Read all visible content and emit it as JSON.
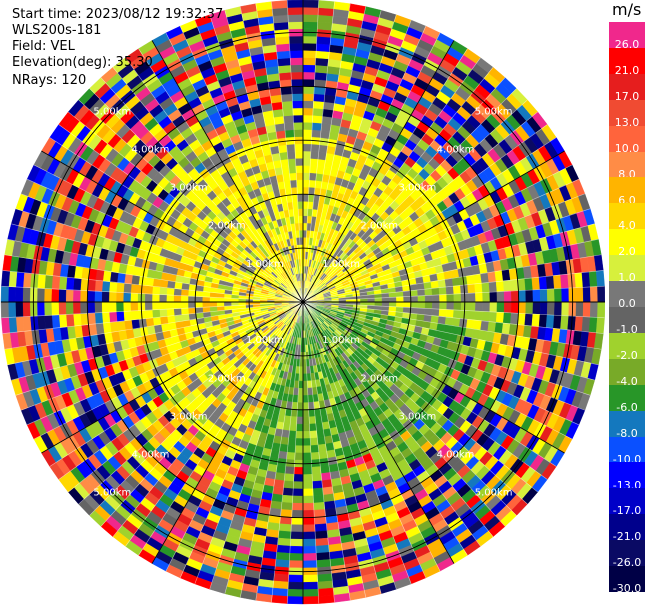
{
  "header": {
    "start_time": "Start time: 2023/08/12 19:32:37",
    "instrument": "WLS200s-181",
    "field": "Field: VEL",
    "elevation": "Elevation(deg): 35.30",
    "nrays": "NRays: 120"
  },
  "colorbar": {
    "units": "m/s",
    "levels": [
      {
        "label": "26.0",
        "color": "#f0288c"
      },
      {
        "label": "21.0",
        "color": "#ff0000"
      },
      {
        "label": "17.0",
        "color": "#e61e1e"
      },
      {
        "label": "13.0",
        "color": "#f04b32"
      },
      {
        "label": "10.0",
        "color": "#ff643c"
      },
      {
        "label": "8.0",
        "color": "#ff8c46"
      },
      {
        "label": "6.0",
        "color": "#ffb400"
      },
      {
        "label": "4.0",
        "color": "#ffd700"
      },
      {
        "label": "2.0",
        "color": "#ffff00"
      },
      {
        "label": "1.0",
        "color": "#d7f03c"
      },
      {
        "label": "0.0",
        "color": "#787878"
      },
      {
        "label": "-1.0",
        "color": "#646464"
      },
      {
        "label": "-2.0",
        "color": "#a0d22d"
      },
      {
        "label": "-4.0",
        "color": "#78aa28"
      },
      {
        "label": "-6.0",
        "color": "#289628"
      },
      {
        "label": "-8.0",
        "color": "#1478be"
      },
      {
        "label": "-10.0",
        "color": "#0a50ff"
      },
      {
        "label": "-13.0",
        "color": "#0000ff"
      },
      {
        "label": "-17.0",
        "color": "#0000c8"
      },
      {
        "label": "-21.0",
        "color": "#00008c"
      },
      {
        "label": "-26.0",
        "color": "#0a0a64"
      },
      {
        "label": "-30.0",
        "color": "#000046"
      }
    ]
  },
  "chart_data": {
    "type": "heatmap",
    "subtype": "polar-ppi",
    "field": "VEL",
    "units": "m/s",
    "n_rays": 120,
    "elevation_deg": 35.3,
    "range_rings_km": [
      1.0,
      2.0,
      3.0,
      4.0,
      5.0
    ],
    "range_ring_labels": [
      "1.00km",
      "2.00km",
      "3.00km",
      "4.00km",
      "5.00km"
    ],
    "max_range_km": 5.6,
    "azimuth_lines_deg": [
      0,
      30,
      60,
      90,
      120,
      150,
      180,
      210,
      240,
      270,
      300,
      330
    ],
    "description_pattern": {
      "inner_zone_km": 3.0,
      "inner_dominant": [
        "2.0",
        "-2.0",
        "0.0"
      ],
      "outer_zone": "noise (all colors)",
      "positive_sector": "north-west / north-east / south-west (yellow)",
      "negative_sector": "south-east (green)"
    }
  }
}
